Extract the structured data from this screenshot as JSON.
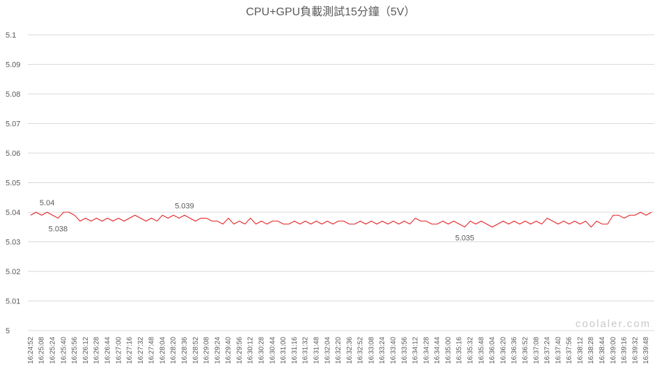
{
  "chart_data": {
    "type": "line",
    "title": "CPU+GPU負載測試15分鐘（5V）",
    "categories": [
      "16:24:52",
      null,
      "16:25:08",
      null,
      "16:25:24",
      null,
      "16:25:40",
      null,
      "16:25:56",
      null,
      "16:26:12",
      null,
      "16:26:28",
      null,
      "16:26:44",
      null,
      "16:27:00",
      null,
      "16:27:16",
      null,
      "16:27:32",
      null,
      "16:27:48",
      null,
      "16:28:04",
      null,
      "16:28:20",
      null,
      "16:28:36",
      null,
      "16:28:52",
      null,
      "16:29:08",
      null,
      "16:29:24",
      null,
      "16:29:40",
      null,
      "16:29:56",
      null,
      "16:30:12",
      null,
      "16:30:28",
      null,
      "16:30:44",
      null,
      "16:31:00",
      null,
      "16:31:16",
      null,
      "16:31:32",
      null,
      "16:31:48",
      null,
      "16:32:04",
      null,
      "16:32:20",
      null,
      "16:32:36",
      null,
      "16:32:52",
      null,
      "16:33:08",
      null,
      "16:33:24",
      null,
      "16:33:40",
      null,
      "16:33:56",
      null,
      "16:34:12",
      null,
      "16:34:28",
      null,
      "16:34:44",
      null,
      "16:35:00",
      null,
      "16:35:16",
      null,
      "16:35:32",
      null,
      "16:35:48",
      null,
      "16:36:04",
      null,
      "16:36:20",
      null,
      "16:36:36",
      null,
      "16:36:52",
      null,
      "16:37:08",
      null,
      "16:37:24",
      null,
      "16:37:40",
      null,
      "16:37:56",
      null,
      "16:38:12",
      null,
      "16:38:28",
      null,
      "16:38:44",
      null,
      "16:39:00",
      null,
      "16:39:16",
      null,
      "16:39:32",
      null,
      "16:39:48",
      null
    ],
    "series": [
      {
        "name": "5V",
        "color": "#e31a1c",
        "values": [
          5.039,
          5.04,
          5.039,
          5.04,
          5.039,
          5.038,
          5.04,
          5.04,
          5.039,
          5.037,
          5.038,
          5.037,
          5.038,
          5.037,
          5.038,
          5.037,
          5.038,
          5.037,
          5.038,
          5.039,
          5.038,
          5.037,
          5.038,
          5.037,
          5.039,
          5.038,
          5.039,
          5.038,
          5.039,
          5.038,
          5.037,
          5.038,
          5.038,
          5.037,
          5.037,
          5.036,
          5.038,
          5.036,
          5.037,
          5.036,
          5.038,
          5.036,
          5.037,
          5.036,
          5.037,
          5.037,
          5.036,
          5.036,
          5.037,
          5.036,
          5.037,
          5.036,
          5.037,
          5.036,
          5.037,
          5.036,
          5.037,
          5.037,
          5.036,
          5.036,
          5.037,
          5.036,
          5.037,
          5.036,
          5.037,
          5.036,
          5.037,
          5.036,
          5.037,
          5.036,
          5.038,
          5.037,
          5.037,
          5.036,
          5.036,
          5.037,
          5.036,
          5.037,
          5.036,
          5.035,
          5.037,
          5.036,
          5.037,
          5.036,
          5.035,
          5.036,
          5.037,
          5.036,
          5.037,
          5.036,
          5.037,
          5.036,
          5.037,
          5.036,
          5.038,
          5.037,
          5.036,
          5.037,
          5.036,
          5.037,
          5.036,
          5.037,
          5.035,
          5.037,
          5.036,
          5.036,
          5.039,
          5.039,
          5.038,
          5.039,
          5.039,
          5.04,
          5.039,
          5.04
        ]
      }
    ],
    "labeled_points": [
      3,
      5,
      28,
      79
    ],
    "ylim": [
      5,
      5.1
    ],
    "yticks": [
      5,
      5.01,
      5.02,
      5.03,
      5.04,
      5.05,
      5.06,
      5.07,
      5.08,
      5.09,
      5.1
    ],
    "grid": true,
    "watermark": "coolaler.com"
  }
}
